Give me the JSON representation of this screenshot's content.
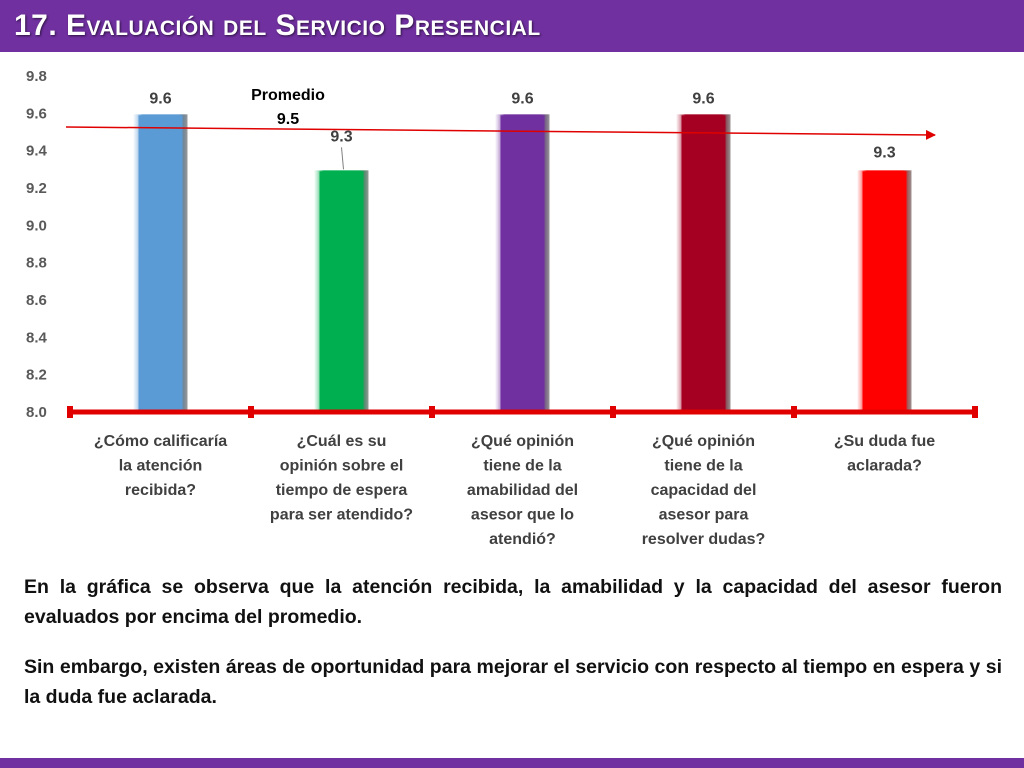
{
  "slide": {
    "title": "17. Evaluación del Servicio Presencial",
    "paragraphs": [
      "En la gráfica se observa que la atención recibida, la amabilidad y la capacidad del asesor fueron evaluados por encima del promedio.",
      "Sin embargo, existen áreas de oportunidad para mejorar el servicio con respecto al tiempo en espera y si la duda fue aclarada."
    ]
  },
  "chart_data": {
    "type": "bar",
    "title": "",
    "xlabel": "",
    "ylabel": "",
    "ylim": [
      8.0,
      9.8
    ],
    "yticks": [
      "8.0",
      "8.2",
      "8.4",
      "8.6",
      "8.8",
      "9.0",
      "9.2",
      "9.4",
      "9.6",
      "9.8"
    ],
    "grid": false,
    "categories": [
      [
        "¿Cómo calificaría",
        "la atención",
        "recibida?"
      ],
      [
        "¿Cuál es su",
        "opinión sobre el",
        "tiempo de espera",
        "para ser atendido?"
      ],
      [
        "¿Qué opinión",
        "tiene de la",
        "amabilidad del",
        "asesor que lo",
        "atendió?"
      ],
      [
        "¿Qué opinión",
        "tiene de la",
        "capacidad del",
        "asesor para",
        "resolver dudas?"
      ],
      [
        "¿Su duda fue",
        "aclarada?"
      ]
    ],
    "values": [
      9.6,
      9.3,
      9.6,
      9.6,
      9.3
    ],
    "value_labels": [
      "9.6",
      "9.3",
      "9.6",
      "9.6",
      "9.3"
    ],
    "colors": [
      "#5b9bd5",
      "#00b050",
      "#7030a0",
      "#a50021",
      "#ff0000"
    ],
    "average": {
      "label": "Promedio",
      "value": 9.5,
      "value_label": "9.5",
      "color": "#e00000"
    }
  }
}
